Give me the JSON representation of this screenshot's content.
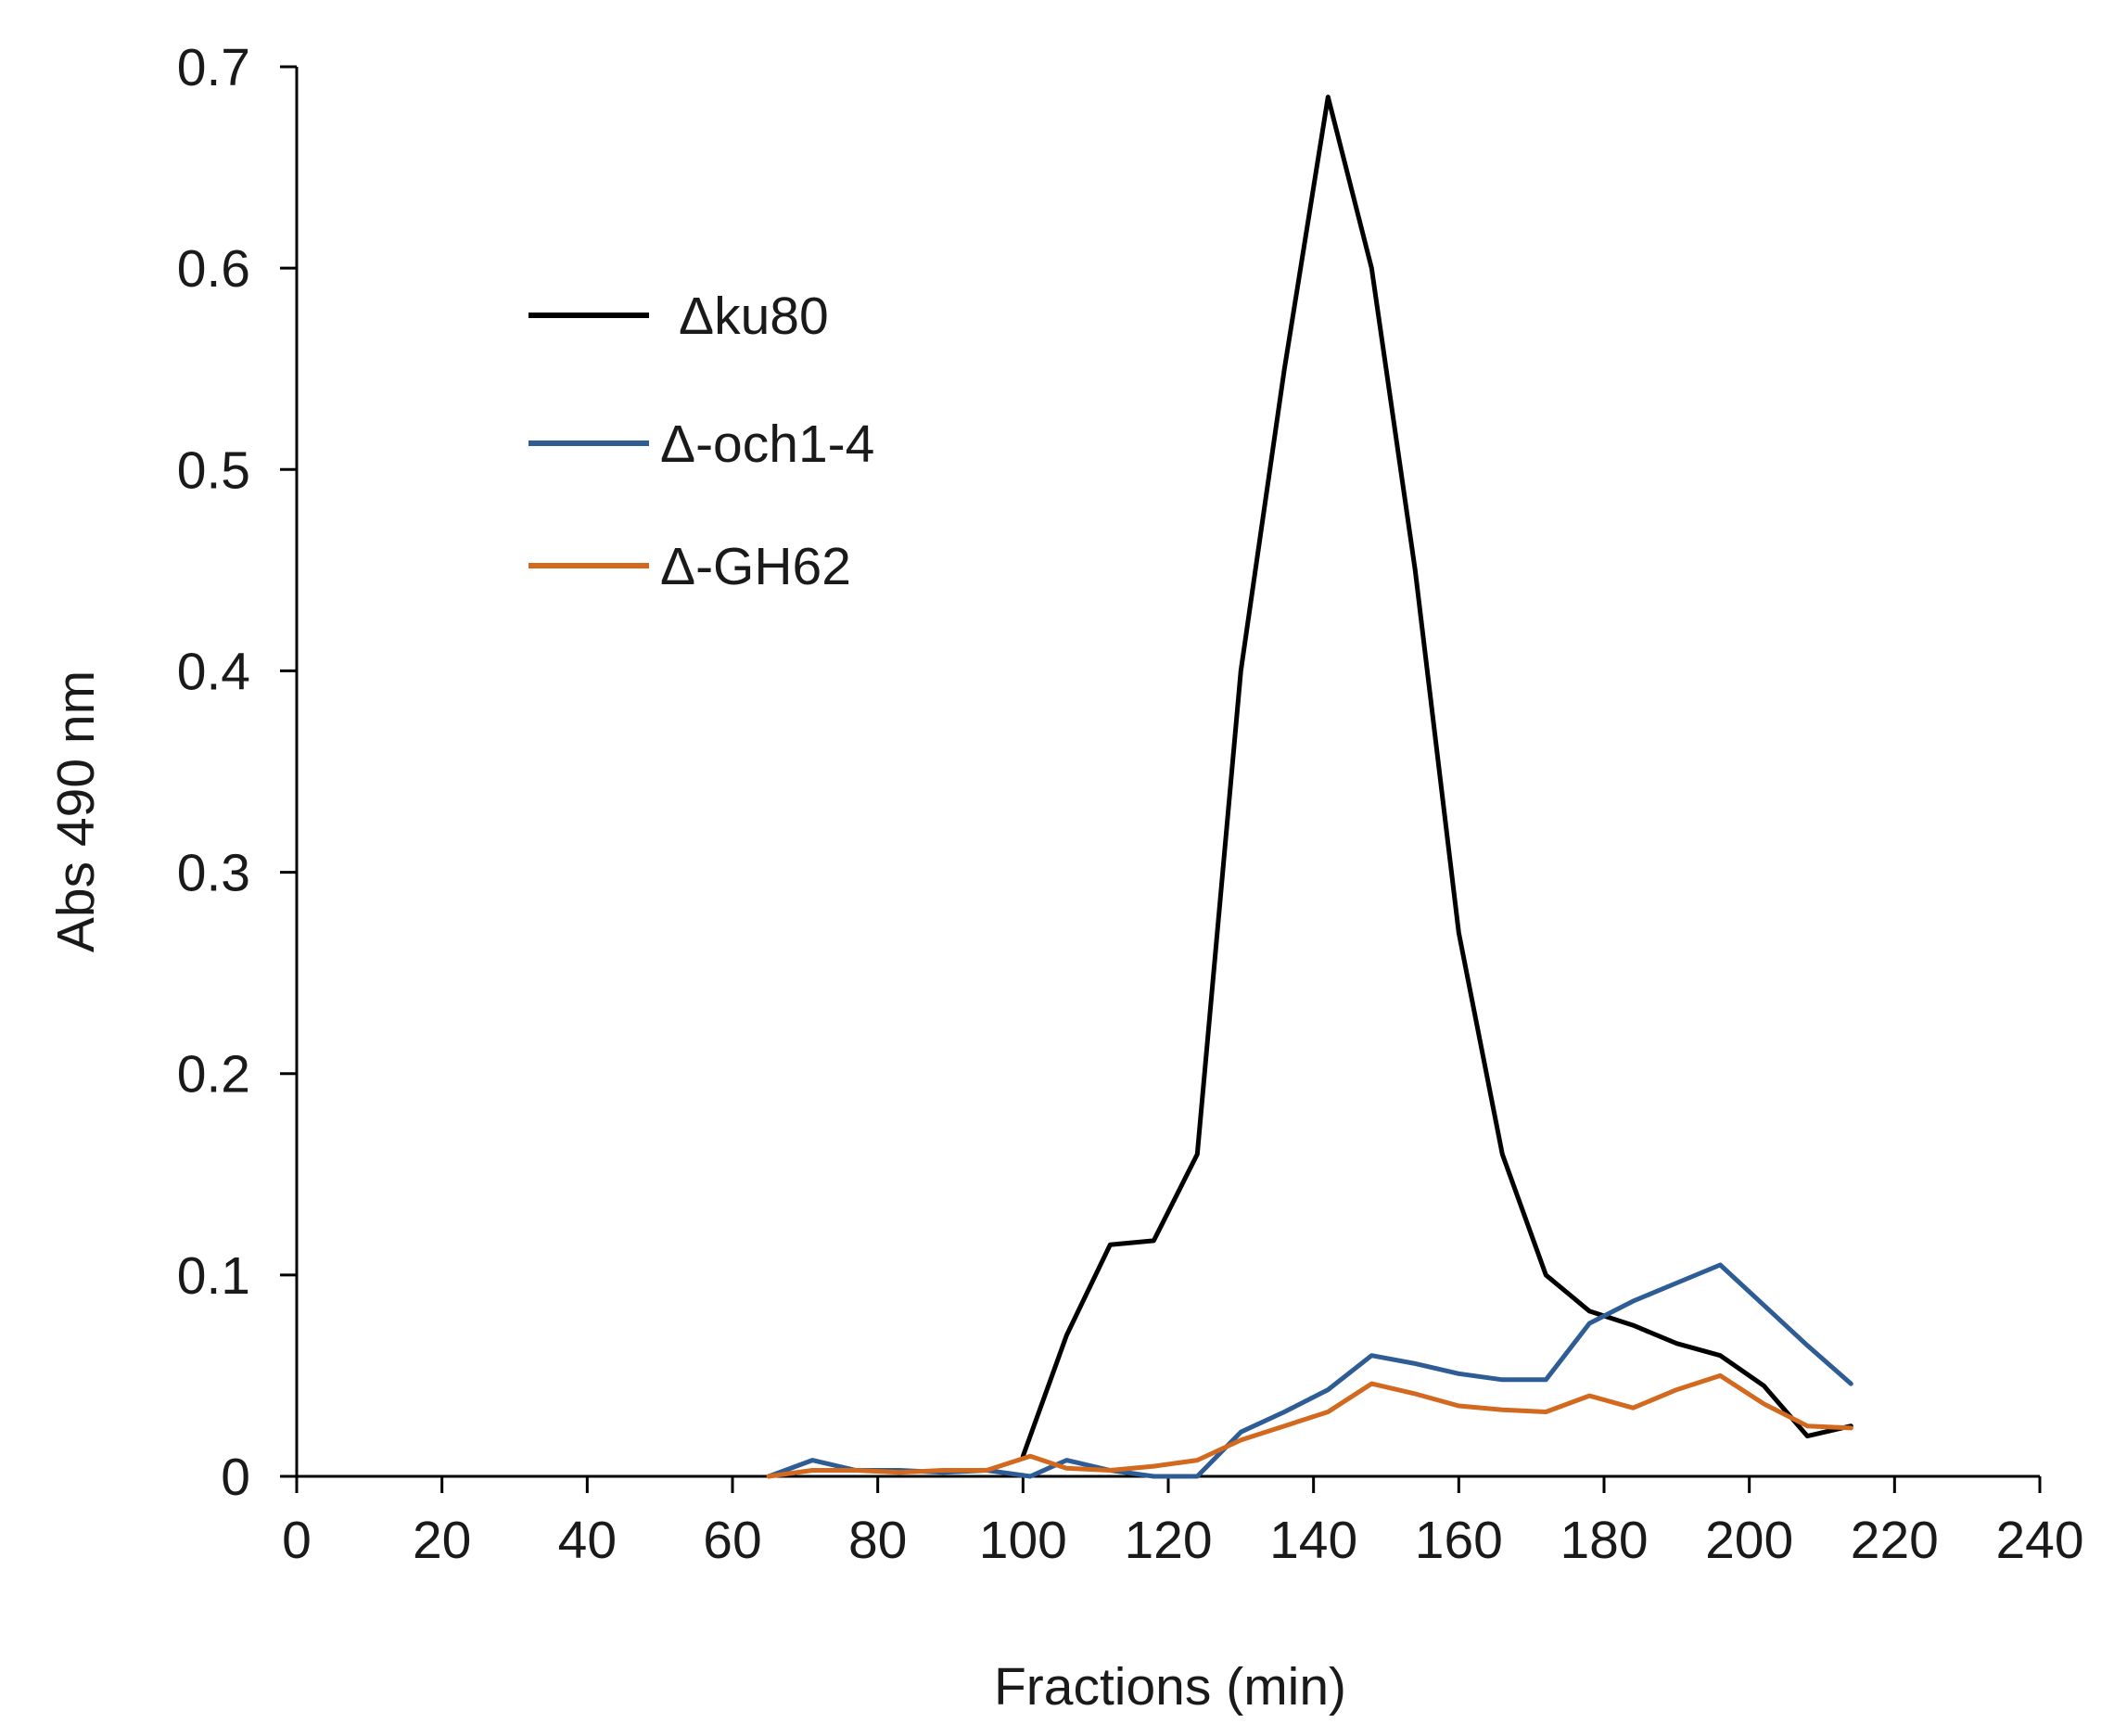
{
  "chart_data": {
    "type": "line",
    "title": "",
    "xlabel": "Fractions (min)",
    "ylabel": "Abs 490 nm",
    "xlim": [
      0,
      240
    ],
    "ylim": [
      0,
      0.7
    ],
    "xticks": [
      0,
      20,
      40,
      60,
      80,
      100,
      120,
      140,
      160,
      180,
      200,
      220,
      240
    ],
    "yticks": [
      0,
      0.1,
      0.2,
      0.3,
      0.4,
      0.5,
      0.6,
      0.7
    ],
    "xtick_labels": [
      "0",
      "20",
      "40",
      "60",
      "80",
      "100",
      "120",
      "140",
      "160",
      "180",
      "200",
      "220",
      "240"
    ],
    "ytick_labels": [
      "0",
      "0.1",
      "0.2",
      "0.3",
      "0.4",
      "0.5",
      "0.6",
      "0.7"
    ],
    "grid": false,
    "legend_position": "top-left",
    "series": [
      {
        "name": "Δku80",
        "color": "#000000",
        "x": [
          100,
          106,
          112,
          118,
          124,
          130,
          136,
          142,
          148,
          154,
          160,
          166,
          172,
          178,
          184,
          190,
          196,
          202,
          208,
          214
        ],
        "y": [
          0.01,
          0.07,
          0.115,
          0.117,
          0.16,
          0.4,
          0.55,
          0.685,
          0.6,
          0.45,
          0.27,
          0.16,
          0.1,
          0.082,
          0.075,
          0.066,
          0.06,
          0.045,
          0.02,
          0.025
        ]
      },
      {
        "name": "Δ-och1-4",
        "color": "#2e5c94",
        "x": [
          65,
          71,
          77,
          83,
          89,
          95,
          101,
          106,
          112,
          118,
          124,
          130,
          136,
          142,
          148,
          154,
          160,
          166,
          172,
          178,
          184,
          190,
          196,
          202,
          208,
          214
        ],
        "y": [
          0,
          0.008,
          0.003,
          0.003,
          0.002,
          0.003,
          0,
          0.008,
          0.003,
          0,
          0,
          0.022,
          0.032,
          0.043,
          0.06,
          0.056,
          0.051,
          0.048,
          0.048,
          0.076,
          0.087,
          0.096,
          0.105,
          0.085,
          0.065,
          0.046
        ]
      },
      {
        "name": "Δ-GH62",
        "color": "#d2691e",
        "x": [
          65,
          71,
          77,
          83,
          89,
          95,
          101,
          106,
          112,
          118,
          124,
          130,
          136,
          142,
          148,
          154,
          160,
          166,
          172,
          178,
          184,
          190,
          196,
          202,
          208,
          214
        ],
        "y": [
          0,
          0.003,
          0.003,
          0.002,
          0.003,
          0.003,
          0.01,
          0.004,
          0.003,
          0.005,
          0.008,
          0.018,
          0.025,
          0.032,
          0.046,
          0.041,
          0.035,
          0.033,
          0.032,
          0.04,
          0.034,
          0.043,
          0.05,
          0.036,
          0.025,
          0.024
        ]
      }
    ]
  }
}
